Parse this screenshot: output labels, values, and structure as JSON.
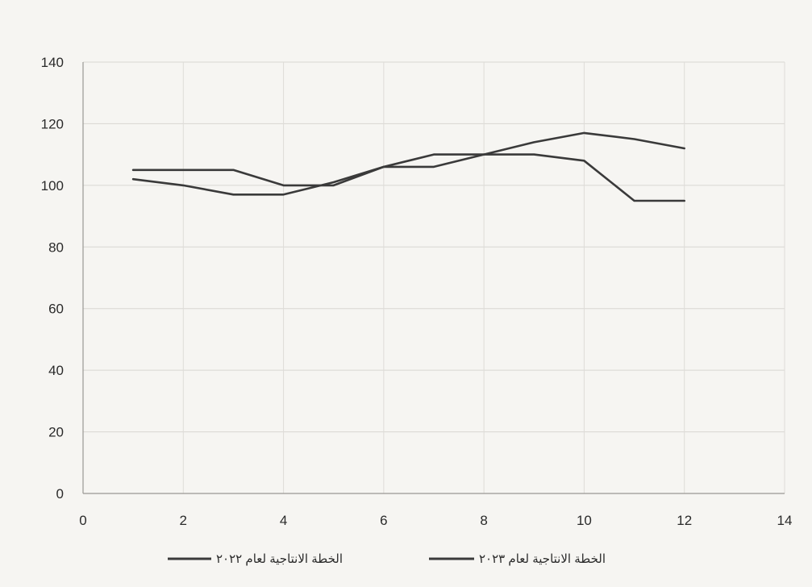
{
  "chart_data": {
    "type": "line",
    "title": "",
    "xlabel": "",
    "ylabel": "",
    "xlim": [
      0,
      14
    ],
    "ylim": [
      0,
      140
    ],
    "x_ticks": [
      "0",
      "2",
      "4",
      "6",
      "8",
      "10",
      "12",
      "14"
    ],
    "y_ticks": [
      "0",
      "20",
      "40",
      "60",
      "80",
      "100",
      "120",
      "140"
    ],
    "grid": true,
    "legend_position": "bottom",
    "series": [
      {
        "name": "الخطة الانتاجية لعام ٢٠٢٢",
        "color": "#3a3a3a",
        "x": [
          1,
          2,
          3,
          4,
          5,
          6,
          7,
          8,
          9,
          10,
          11,
          12
        ],
        "values": [
          102,
          100,
          97,
          97,
          101,
          106,
          110,
          110,
          114,
          117,
          115,
          112
        ]
      },
      {
        "name": "الخطة الانتاجية لعام ٢٠٢٣",
        "color": "#3a3a3a",
        "x": [
          1,
          2,
          3,
          4,
          5,
          6,
          7,
          8,
          9,
          10,
          11,
          12
        ],
        "values": [
          105,
          105,
          105,
          100,
          100,
          106,
          106,
          110,
          110,
          108,
          95,
          95
        ]
      }
    ]
  }
}
